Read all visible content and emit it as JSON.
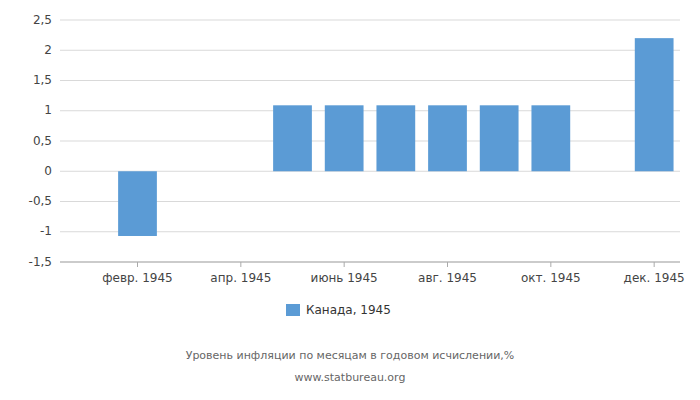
{
  "chart_data": {
    "type": "bar",
    "categories": [
      null,
      "февр. 1945",
      null,
      "апр. 1945",
      null,
      "июнь 1945",
      null,
      "авг. 1945",
      null,
      "окт. 1945",
      null,
      "дек. 1945"
    ],
    "series": [
      {
        "name": "Канада, 1945",
        "color": "#5B9BD5",
        "values": [
          null,
          -1.07,
          null,
          null,
          1.09,
          1.09,
          1.09,
          1.09,
          1.09,
          1.09,
          null,
          2.2
        ]
      }
    ],
    "ylim": [
      -1.5,
      2.5
    ],
    "yticks": [
      {
        "value": -1.5,
        "label": "-1,5"
      },
      -1,
      {
        "value": -0.5,
        "label": "-0,5"
      },
      0,
      {
        "value": 0.5,
        "label": "0,5"
      },
      1,
      {
        "value": 1.5,
        "label": "1,5"
      },
      2,
      {
        "value": 2.5,
        "label": "2,5"
      }
    ],
    "grid": true,
    "legend": "bottom",
    "annotations": [
      "Уровень инфляции по месяцам в годовом исчислении,%",
      "www.statbureau.org"
    ]
  }
}
